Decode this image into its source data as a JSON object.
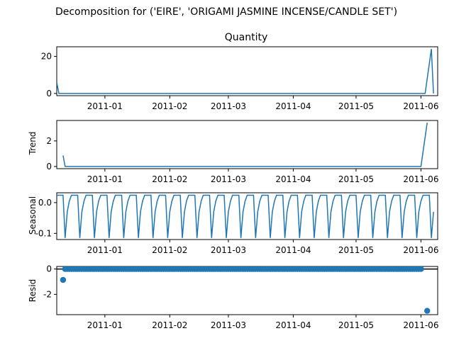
{
  "suptitle": "Decomposition for ('EIRE', 'ORIGAMI JASMINE INCENSE/CANDLE SET')",
  "colors": {
    "line": "#1f77b4",
    "axis": "#000000",
    "background": "#ffffff"
  },
  "x_ticks": [
    "2011-01",
    "2011-02",
    "2011-03",
    "2011-04",
    "2011-05",
    "2011-06"
  ],
  "chart_data": [
    {
      "type": "line",
      "title": "Quantity",
      "ylabel": "",
      "xlim": [
        "2010-12-09",
        "2011-06-09"
      ],
      "ylim": [
        -1.2,
        25.2
      ],
      "yticks": [
        0,
        20
      ],
      "series": [
        {
          "values": [
            [
              0,
              6
            ],
            [
              1,
              0
            ],
            [
              176,
              0
            ],
            [
              179,
              24
            ],
            [
              180,
              0
            ]
          ]
        }
      ]
    },
    {
      "type": "line",
      "title": "",
      "ylabel": "Trend",
      "xlim": [
        "2010-12-09",
        "2011-06-09"
      ],
      "ylim": [
        -0.17,
        3.6
      ],
      "yticks": [
        0,
        2
      ],
      "series": [
        {
          "values": [
            [
              3,
              0.86
            ],
            [
              4,
              0
            ],
            [
              174,
              0
            ],
            [
              177,
              3.43
            ]
          ]
        }
      ]
    },
    {
      "type": "line",
      "title": "",
      "ylabel": "Seasonal",
      "xlim": [
        "2010-12-09",
        "2011-06-09"
      ],
      "ylim": [
        -0.12,
        0.032
      ],
      "yticks": [
        0.0,
        -0.1
      ],
      "period": 7,
      "pattern": [
        0.024,
        0.024,
        0.024,
        0.024,
        -0.115,
        -0.03,
        0.005
      ],
      "series": [
        {
          "x_range": [
            0,
            180
          ]
        }
      ]
    },
    {
      "type": "scatter",
      "title": "",
      "ylabel": "Resid",
      "xlim": [
        "2010-12-09",
        "2011-06-09"
      ],
      "ylim": [
        -3.6,
        0.2
      ],
      "yticks": [
        0,
        -2
      ],
      "hline": 0,
      "points_at_zero": {
        "x_range": [
          4,
          174
        ]
      },
      "outliers": [
        [
          3,
          -0.86
        ],
        [
          177,
          -3.3
        ]
      ]
    }
  ]
}
